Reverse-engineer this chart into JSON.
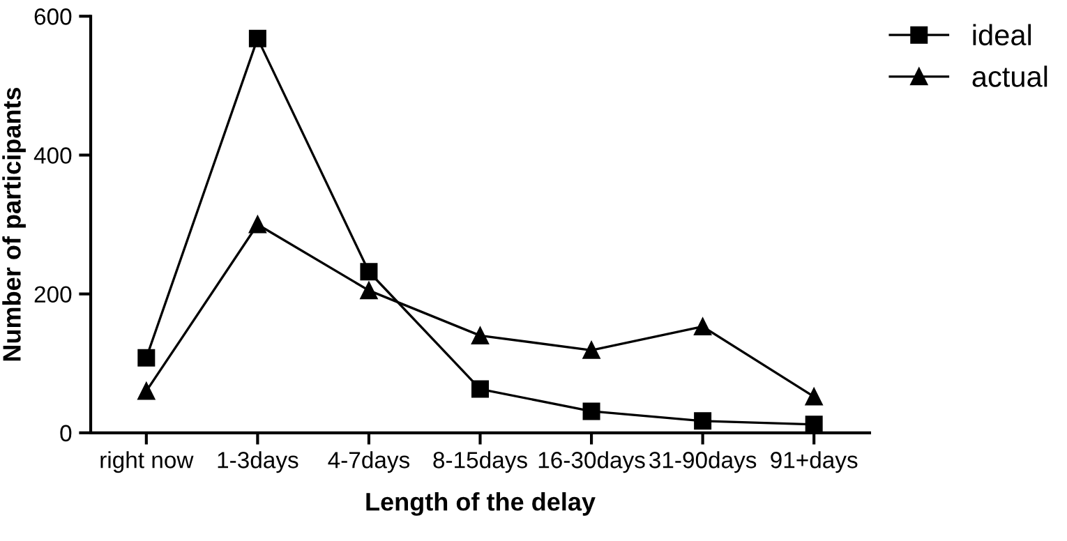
{
  "chart_data": {
    "type": "line",
    "xlabel": "Length of the delay",
    "ylabel": "Number of participants",
    "categories": [
      "right now",
      "1-3days",
      "4-7days",
      "8-15days",
      "16-30days",
      "31-90days",
      "91+days"
    ],
    "series": [
      {
        "name": "ideal",
        "color": "#000000",
        "marker": "square",
        "values": [
          108,
          568,
          232,
          63,
          31,
          17,
          12
        ]
      },
      {
        "name": "actual",
        "color": "#000000",
        "marker": "triangle",
        "values": [
          60,
          300,
          205,
          140,
          119,
          153,
          52
        ]
      }
    ],
    "ylim": [
      0,
      600
    ],
    "yticks": [
      0,
      200,
      400,
      600
    ],
    "grid": false,
    "legend": "top right",
    "line_style": "solid"
  }
}
